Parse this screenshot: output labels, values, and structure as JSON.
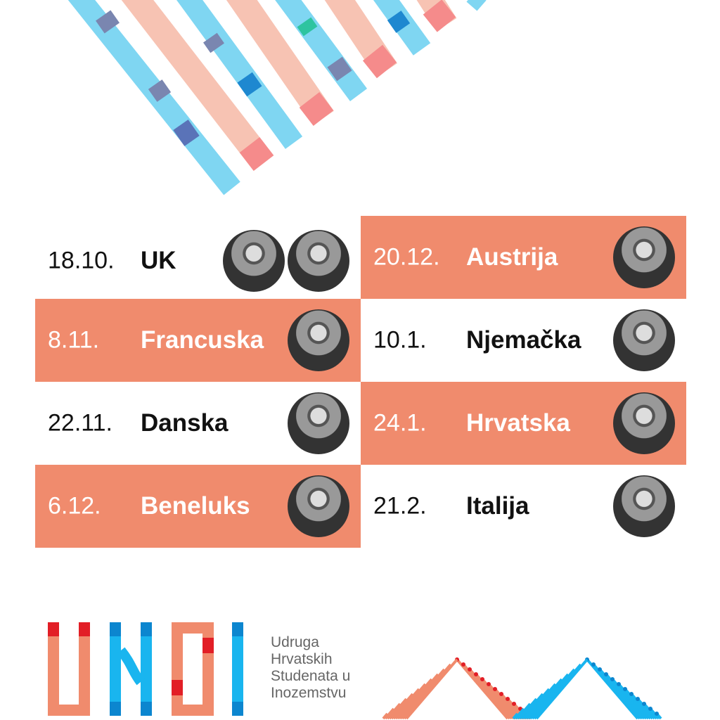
{
  "colors": {
    "salmon": "#f08b6d",
    "light_salmon": "#f7c3b3",
    "pink": "#f58b8b",
    "light_blue": "#7fd6f2",
    "blue": "#1e88d0",
    "red": "#e21e26"
  },
  "schedule": {
    "left": [
      {
        "date": "18.10.",
        "country": "UK",
        "style": "white",
        "avatars": 2
      },
      {
        "date": "8.11.",
        "country": "Francuska",
        "style": "orange",
        "avatars": 1
      },
      {
        "date": "22.11.",
        "country": "Danska",
        "style": "white",
        "avatars": 1
      },
      {
        "date": "6.12.",
        "country": "Beneluks",
        "style": "orange",
        "avatars": 1
      }
    ],
    "right": [
      {
        "date": "20.12.",
        "country": "Austrija",
        "style": "orange",
        "avatars": 1
      },
      {
        "date": "10.1.",
        "country": "Njemačka",
        "style": "white",
        "avatars": 1
      },
      {
        "date": "24.1.",
        "country": "Hrvatska",
        "style": "orange",
        "avatars": 1
      },
      {
        "date": "21.2.",
        "country": "Italija",
        "style": "white",
        "avatars": 1
      }
    ]
  },
  "logo": {
    "letters": "UHSI",
    "org_name_lines": [
      "Udruga",
      "Hrvatskih",
      "Studenata u",
      "Inozemstvu"
    ]
  }
}
